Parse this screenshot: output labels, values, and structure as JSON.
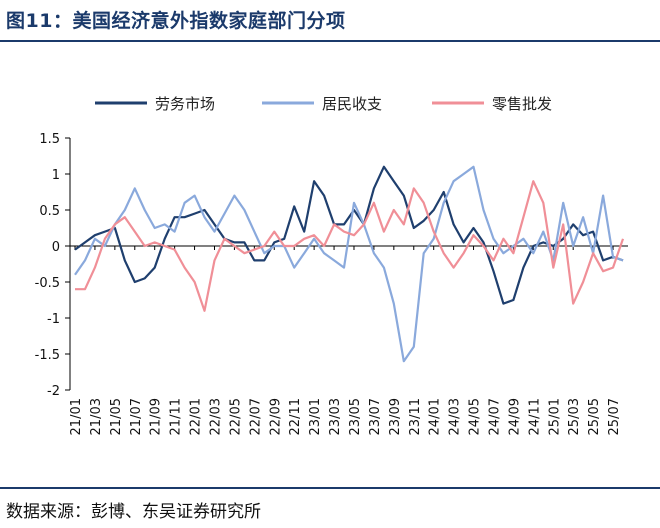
{
  "header": {
    "title": "图11：美国经济意外指数家庭部门分项"
  },
  "footer": {
    "source": "数据来源：彭博、东吴证券研究所"
  },
  "chart_data": {
    "type": "line",
    "title": "",
    "xlabel": "",
    "ylabel": "",
    "ylim": [
      -2,
      1.5
    ],
    "yticks": [
      "1.5",
      "1",
      "0.5",
      "0",
      "-0.5",
      "-1",
      "-1.5",
      "-2"
    ],
    "grid": false,
    "legend_position": "top",
    "x_tick_labels": [
      "21/01",
      "21/03",
      "21/05",
      "21/07",
      "21/09",
      "21/11",
      "22/01",
      "22/03",
      "22/05",
      "22/07",
      "22/09",
      "22/11",
      "23/01",
      "23/03",
      "23/05",
      "23/07",
      "23/09",
      "23/11",
      "24/01",
      "24/03",
      "24/05",
      "24/07",
      "24/09",
      "24/11",
      "25/01",
      "25/03",
      "25/05",
      "25/07"
    ],
    "x": [
      "21/01",
      "21/02",
      "21/03",
      "21/04",
      "21/05",
      "21/06",
      "21/07",
      "21/08",
      "21/09",
      "21/10",
      "21/11",
      "21/12",
      "22/01",
      "22/02",
      "22/03",
      "22/04",
      "22/05",
      "22/06",
      "22/07",
      "22/08",
      "22/09",
      "22/10",
      "22/11",
      "22/12",
      "23/01",
      "23/02",
      "23/03",
      "23/04",
      "23/05",
      "23/06",
      "23/07",
      "23/08",
      "23/09",
      "23/10",
      "23/11",
      "23/12",
      "24/01",
      "24/02",
      "24/03",
      "24/04",
      "24/05",
      "24/06",
      "24/07",
      "24/08",
      "24/09",
      "24/10",
      "24/11",
      "24/12",
      "25/01",
      "25/02",
      "25/03",
      "25/04",
      "25/05",
      "25/06",
      "25/07",
      "25/08"
    ],
    "series": [
      {
        "name": "劳务市场",
        "color": "#1f3f6e",
        "values": [
          -0.05,
          0.05,
          0.15,
          0.2,
          0.25,
          -0.2,
          -0.5,
          -0.45,
          -0.3,
          0.1,
          0.4,
          0.4,
          0.45,
          0.5,
          0.3,
          0.1,
          0.05,
          0.05,
          -0.2,
          -0.2,
          0.05,
          0.1,
          0.55,
          0.2,
          0.9,
          0.7,
          0.3,
          0.3,
          0.5,
          0.3,
          0.8,
          1.1,
          0.9,
          0.7,
          0.25,
          0.35,
          0.5,
          0.75,
          0.3,
          0.05,
          0.25,
          0.05,
          -0.35,
          -0.8,
          -0.75,
          -0.3,
          0.0,
          0.05,
          0.0,
          0.1,
          0.3,
          0.15,
          0.2,
          -0.2,
          -0.15,
          -0.2
        ]
      },
      {
        "name": "居民收支",
        "color": "#8aa9dc",
        "values": [
          -0.4,
          -0.2,
          0.1,
          0.0,
          0.3,
          0.5,
          0.8,
          0.5,
          0.25,
          0.3,
          0.2,
          0.6,
          0.7,
          0.4,
          0.2,
          0.45,
          0.7,
          0.5,
          0.2,
          -0.1,
          0.0,
          0.0,
          -0.3,
          -0.1,
          0.1,
          -0.1,
          -0.2,
          -0.3,
          0.6,
          0.3,
          -0.1,
          -0.3,
          -0.8,
          -1.6,
          -1.4,
          -0.1,
          0.1,
          0.6,
          0.9,
          1.0,
          1.1,
          0.5,
          0.1,
          -0.1,
          0.0,
          0.1,
          -0.1,
          0.2,
          -0.2,
          0.6,
          0.0,
          0.4,
          -0.1,
          0.7,
          -0.15,
          -0.2
        ]
      },
      {
        "name": "零售批发",
        "color": "#f08f97",
        "values": [
          -0.6,
          -0.6,
          -0.3,
          0.1,
          0.3,
          0.4,
          0.2,
          0.0,
          0.05,
          0.0,
          -0.05,
          -0.3,
          -0.5,
          -0.9,
          -0.2,
          0.1,
          0.0,
          -0.1,
          -0.05,
          0.0,
          0.2,
          0.0,
          0.0,
          0.1,
          0.15,
          0.0,
          0.3,
          0.2,
          0.15,
          0.3,
          0.6,
          0.2,
          0.5,
          0.3,
          0.8,
          0.6,
          0.2,
          -0.1,
          -0.3,
          -0.1,
          0.15,
          0.0,
          -0.2,
          0.1,
          -0.1,
          0.4,
          0.9,
          0.6,
          -0.3,
          0.3,
          -0.8,
          -0.5,
          -0.1,
          -0.35,
          -0.3,
          0.1
        ]
      }
    ]
  }
}
